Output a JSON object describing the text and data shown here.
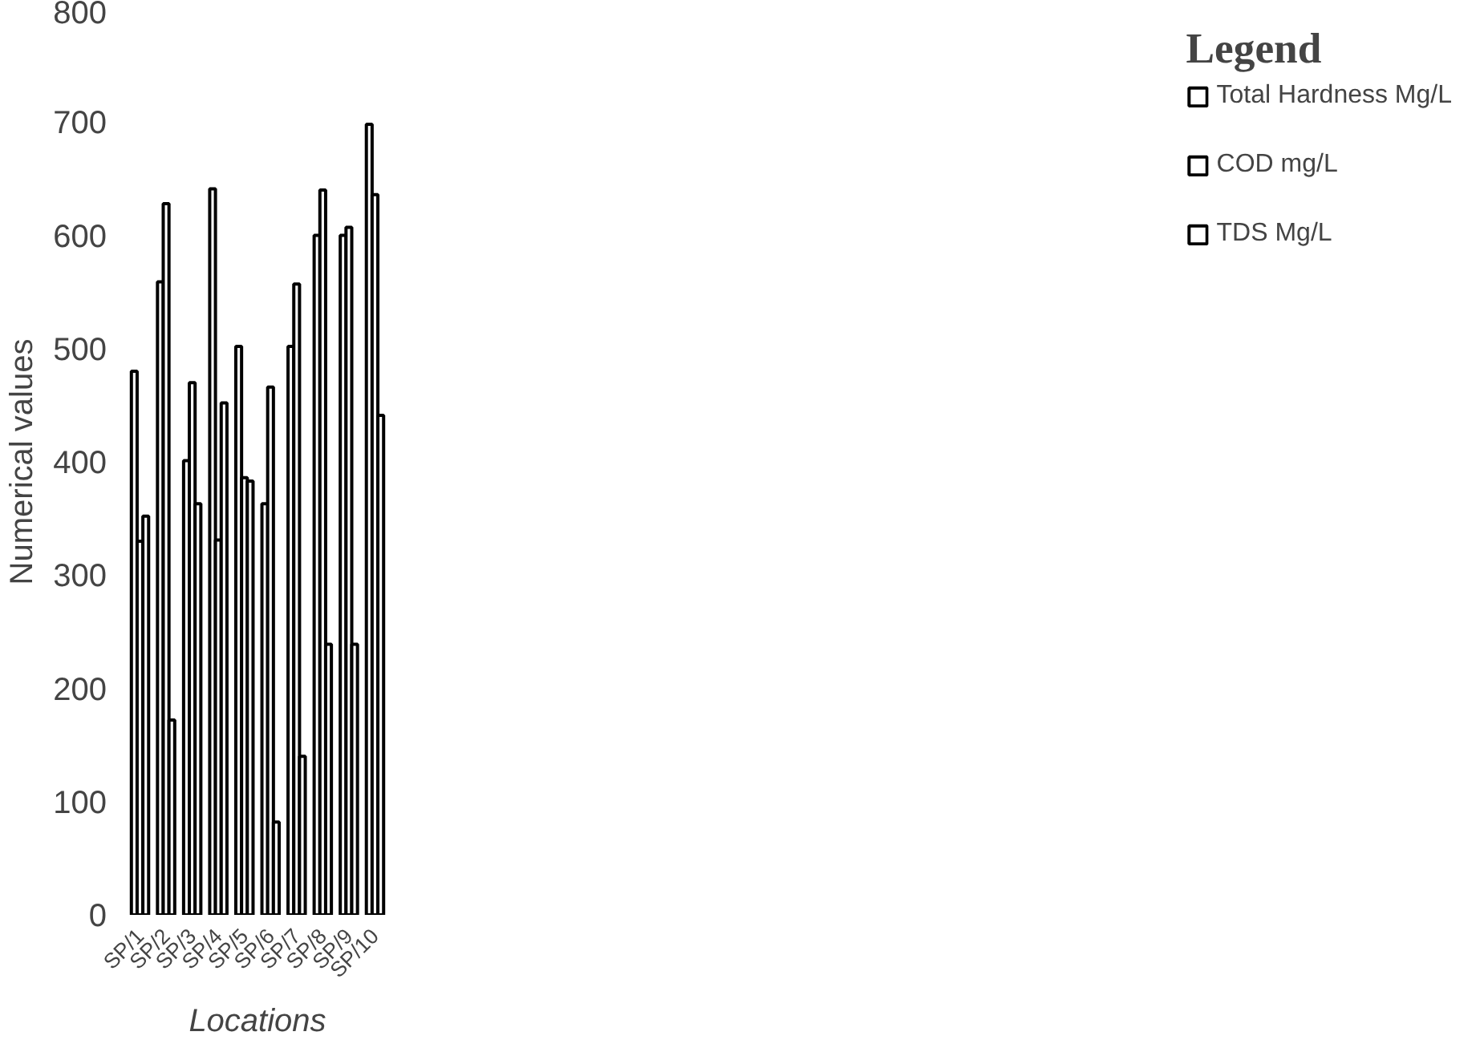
{
  "chart_data": {
    "type": "bar",
    "xlabel": "Locations",
    "ylabel": "Numerical values",
    "legend_title": "Legend",
    "legend": "right",
    "grid": false,
    "categories": [
      "SP/1",
      "SP/2",
      "SP/3",
      "SP/4",
      "SP/5",
      "SP/6",
      "SP/7",
      "SP/8",
      "SP/9",
      "SP/10"
    ],
    "ylim": [
      0,
      800
    ],
    "yticks": [
      0,
      100,
      200,
      300,
      400,
      500,
      600,
      700,
      800
    ],
    "series": [
      {
        "name": "Total Hardness Mg/L",
        "color": "#ffffff",
        "values": [
          480,
          559,
          401,
          641,
          502,
          363,
          502,
          600,
          600,
          698
        ]
      },
      {
        "name": "COD mg/L",
        "color": "#ffffff",
        "values": [
          330,
          628,
          470,
          331,
          386,
          466,
          557,
          640,
          607,
          636
        ]
      },
      {
        "name": "TDS Mg/L",
        "color": "#ffffff",
        "values": [
          352,
          172,
          363,
          452,
          383,
          82,
          140,
          239,
          239,
          441
        ]
      }
    ]
  }
}
